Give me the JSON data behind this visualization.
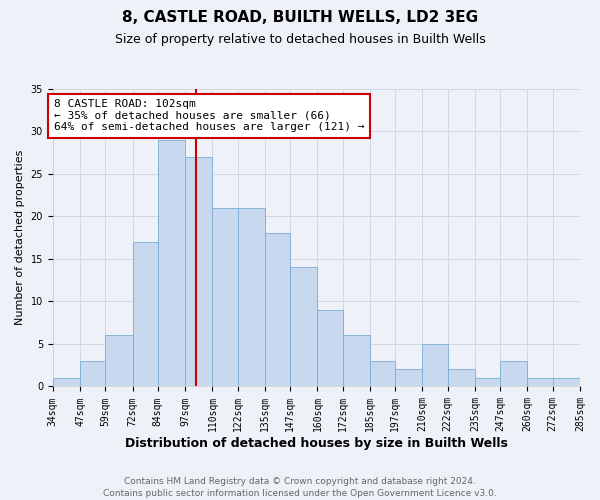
{
  "title": "8, CASTLE ROAD, BUILTH WELLS, LD2 3EG",
  "subtitle": "Size of property relative to detached houses in Builth Wells",
  "xlabel": "Distribution of detached houses by size in Builth Wells",
  "ylabel": "Number of detached properties",
  "bin_labels": [
    "34sqm",
    "47sqm",
    "59sqm",
    "72sqm",
    "84sqm",
    "97sqm",
    "110sqm",
    "122sqm",
    "135sqm",
    "147sqm",
    "160sqm",
    "172sqm",
    "185sqm",
    "197sqm",
    "210sqm",
    "222sqm",
    "235sqm",
    "247sqm",
    "260sqm",
    "272sqm",
    "285sqm"
  ],
  "bin_edges": [
    34,
    47,
    59,
    72,
    84,
    97,
    110,
    122,
    135,
    147,
    160,
    172,
    185,
    197,
    210,
    222,
    235,
    247,
    260,
    272,
    285
  ],
  "bar_heights": [
    1,
    3,
    6,
    17,
    29,
    27,
    21,
    21,
    18,
    14,
    9,
    6,
    3,
    2,
    5,
    2,
    1,
    3,
    1,
    1
  ],
  "bar_color": "#c8d8ee",
  "bar_edgecolor": "#7aacd4",
  "vline_x": 102,
  "vline_color": "#cc0000",
  "annotation_text": "8 CASTLE ROAD: 102sqm\n← 35% of detached houses are smaller (66)\n64% of semi-detached houses are larger (121) →",
  "annotation_box_facecolor": "#ffffff",
  "annotation_box_edgecolor": "#cc0000",
  "ylim": [
    0,
    35
  ],
  "yticks": [
    0,
    5,
    10,
    15,
    20,
    25,
    30,
    35
  ],
  "grid_color": "#d0d8e8",
  "background_color": "#eef2f8",
  "footer_text": "Contains HM Land Registry data © Crown copyright and database right 2024.\nContains public sector information licensed under the Open Government Licence v3.0.",
  "title_fontsize": 11,
  "subtitle_fontsize": 9,
  "xlabel_fontsize": 9,
  "ylabel_fontsize": 8,
  "tick_fontsize": 7,
  "annotation_fontsize": 8,
  "footer_fontsize": 6.5
}
